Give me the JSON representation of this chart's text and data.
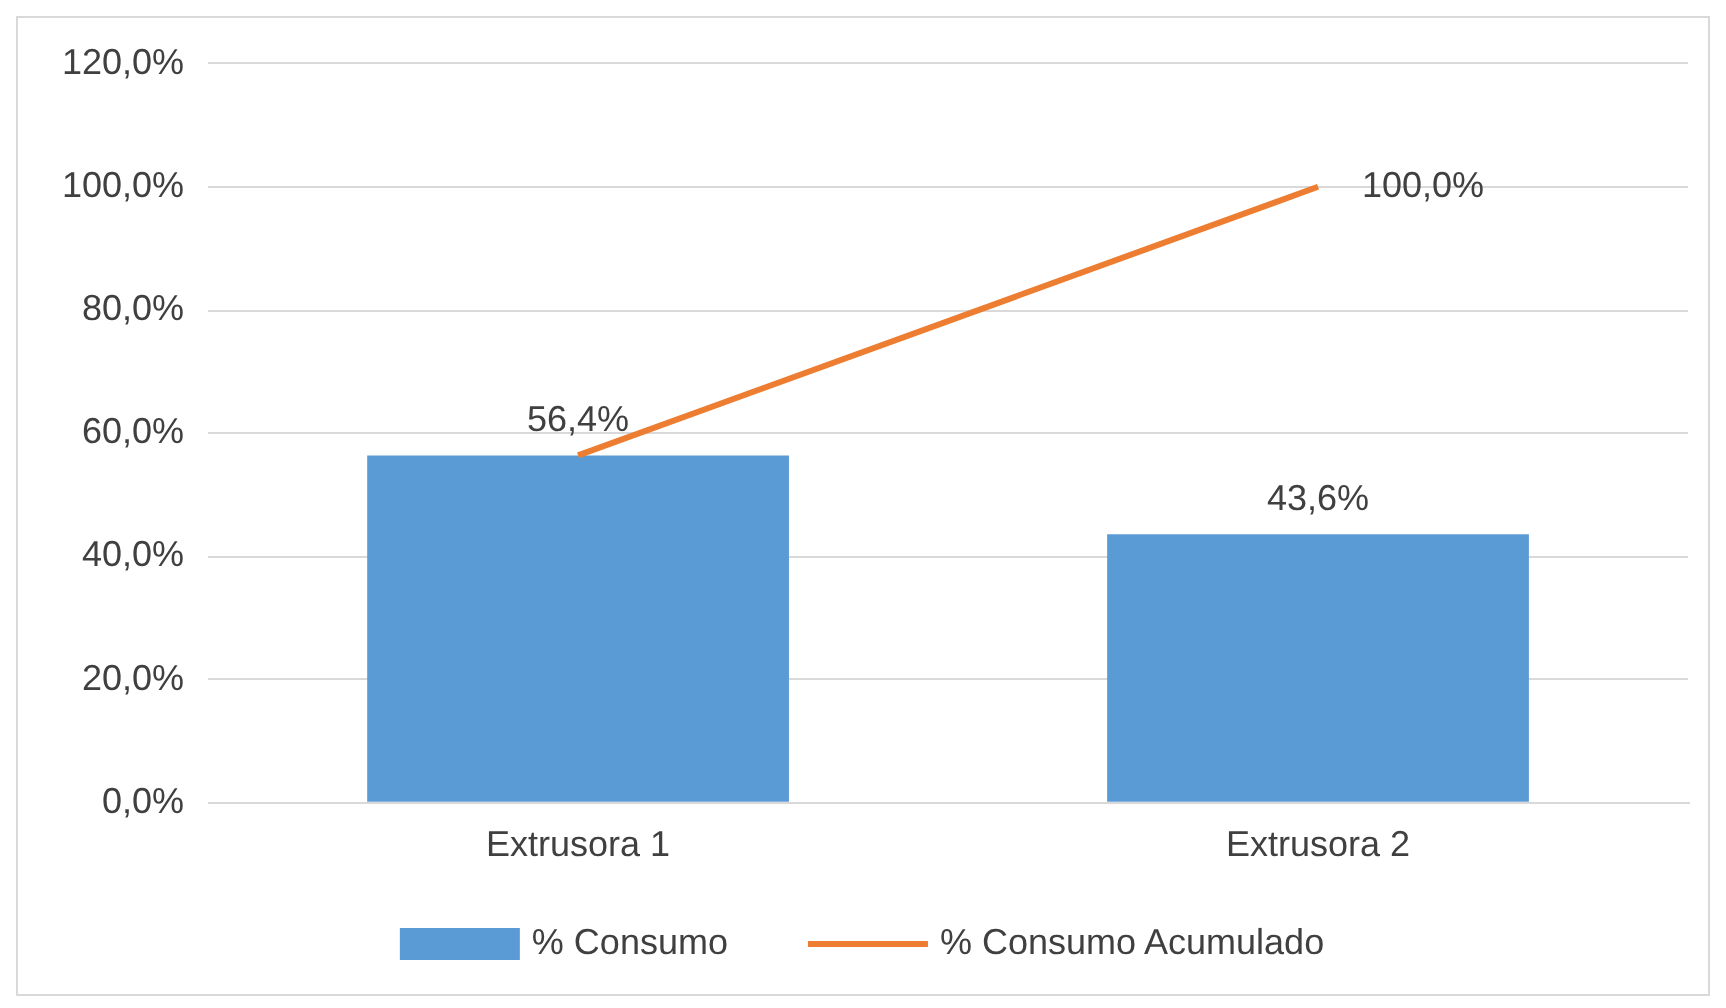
{
  "chart_data": {
    "type": "bar",
    "categories": [
      "Extrusora 1",
      "Extrusora 2"
    ],
    "series": [
      {
        "name": "% Consumo",
        "color": "#5b9bd5",
        "values": [
          56.4,
          43.6
        ],
        "value_labels": [
          "56,4%",
          "43,6%"
        ]
      },
      {
        "name": "% Consumo Acumulado",
        "type": "line",
        "color": "#ed7d31",
        "values": [
          56.4,
          100.0
        ],
        "value_labels": [
          null,
          "100,0%"
        ]
      }
    ],
    "ylim": [
      0,
      120
    ],
    "yticks": [
      {
        "value": 0,
        "label": "0,0%"
      },
      {
        "value": 20,
        "label": "20,0%"
      },
      {
        "value": 40,
        "label": "40,0%"
      },
      {
        "value": 60,
        "label": "60,0%"
      },
      {
        "value": 80,
        "label": "80,0%"
      },
      {
        "value": 100,
        "label": "100,0%"
      },
      {
        "value": 120,
        "label": "120,0%"
      }
    ],
    "grid": "y",
    "legend": "bottom",
    "marker": "none"
  }
}
